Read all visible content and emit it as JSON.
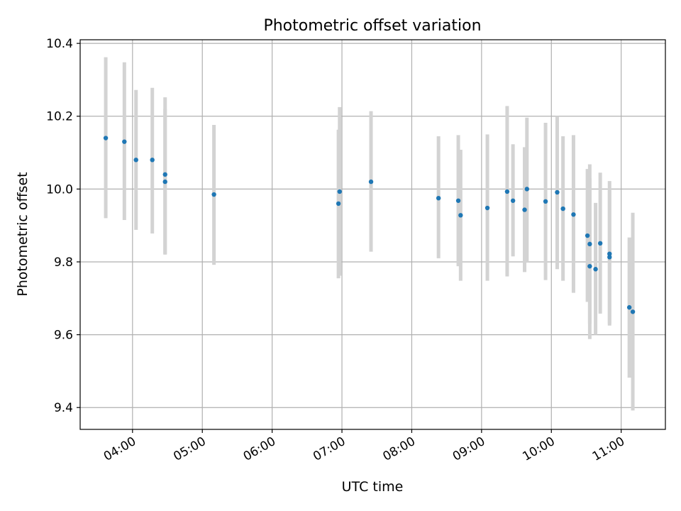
{
  "chart_data": {
    "type": "scatter",
    "title": "Photometric offset variation",
    "xlabel": "UTC time",
    "ylabel": "Photometric offset",
    "x_tick_labels": [
      "04:00",
      "05:00",
      "06:00",
      "07:00",
      "08:00",
      "09:00",
      "10:00",
      "11:00"
    ],
    "y_tick_labels": [
      "9.4",
      "9.6",
      "9.8",
      "10.0",
      "10.2",
      "10.4"
    ],
    "ylim": [
      9.34,
      10.41
    ],
    "xlim": [
      "03:15",
      "11:38"
    ],
    "grid": true,
    "point_color": "#1f77b4",
    "errorbar_color": "#d3d3d3",
    "series": [
      {
        "x": [
          "03:37",
          "03:53",
          "04:03",
          "04:17",
          "04:28",
          "04:28",
          "05:10",
          "06:57",
          "06:58",
          "07:25",
          "08:23",
          "08:40",
          "08:42",
          "09:05",
          "09:22",
          "09:27",
          "09:37",
          "09:39",
          "09:55",
          "10:05",
          "10:10",
          "10:19",
          "10:31",
          "10:33",
          "10:33",
          "10:38",
          "10:42",
          "10:50",
          "10:50",
          "11:07",
          "11:10"
        ],
        "y": [
          10.14,
          10.13,
          10.08,
          10.08,
          10.04,
          10.02,
          9.985,
          9.96,
          9.993,
          10.02,
          9.975,
          9.968,
          9.928,
          9.948,
          9.993,
          9.968,
          9.943,
          10.0,
          9.966,
          9.991,
          9.946,
          9.93,
          9.872,
          9.849,
          9.788,
          9.78,
          9.851,
          9.813,
          9.822,
          9.675,
          9.663
        ],
        "yerr_low": [
          9.92,
          9.915,
          9.888,
          9.878,
          9.822,
          9.82,
          9.792,
          9.755,
          9.762,
          9.828,
          9.81,
          9.788,
          9.748,
          9.748,
          9.76,
          9.815,
          9.772,
          9.8,
          9.75,
          9.78,
          9.748,
          9.715,
          9.69,
          9.588,
          9.63,
          9.6,
          9.658,
          9.625,
          9.63,
          9.482,
          9.392
        ],
        "yerr_high": [
          10.362,
          10.348,
          10.272,
          10.278,
          10.252,
          10.22,
          10.176,
          10.163,
          10.225,
          10.214,
          10.145,
          10.148,
          10.108,
          10.15,
          10.228,
          10.123,
          10.115,
          10.196,
          10.182,
          10.2,
          10.145,
          10.148,
          10.055,
          10.068,
          10.03,
          9.962,
          10.045,
          10.022,
          10.0,
          9.867,
          9.935
        ]
      }
    ]
  }
}
